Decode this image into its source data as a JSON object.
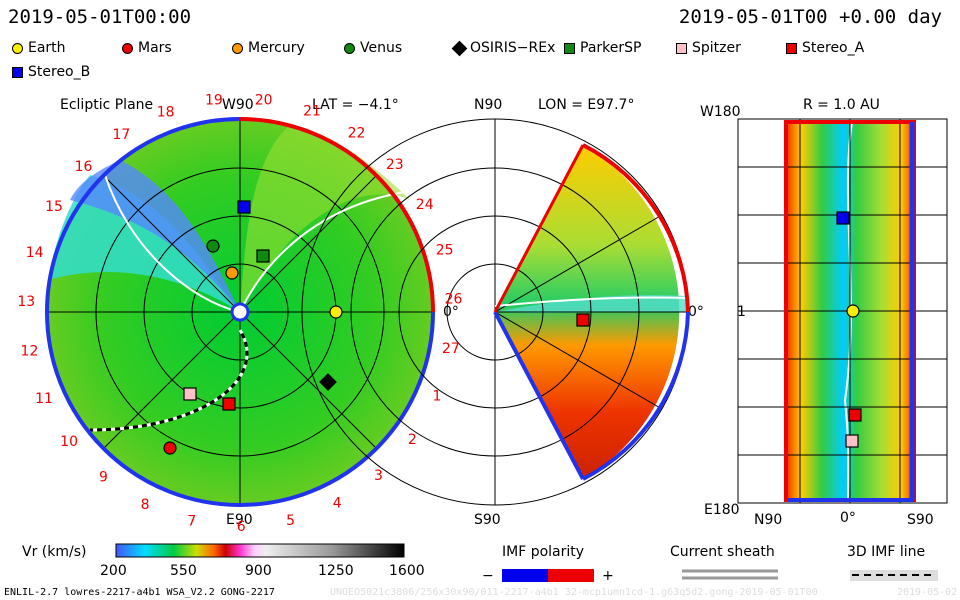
{
  "header": {
    "left_time": "2019-05-01T00:00",
    "right_time": "2019-05-01T00 +0.00 day"
  },
  "legend": [
    {
      "label": "Earth",
      "shape": "circle",
      "color": "#ffee00"
    },
    {
      "label": "Mars",
      "shape": "circle",
      "color": "#ee0000"
    },
    {
      "label": "Mercury",
      "shape": "circle",
      "color": "#ff9900"
    },
    {
      "label": "Venus",
      "shape": "circle",
      "color": "#118811"
    },
    {
      "label": "OSIRIS−REx",
      "shape": "diamond",
      "color": "#000000"
    },
    {
      "label": "ParkerSP",
      "shape": "square",
      "color": "#118811"
    },
    {
      "label": "Spitzer",
      "shape": "square",
      "color": "#ffc0c8"
    },
    {
      "label": "Stereo_A",
      "shape": "square",
      "color": "#ee0000"
    },
    {
      "label": "Stereo_B",
      "shape": "square",
      "color": "#0000ee"
    }
  ],
  "panel1": {
    "title": "Ecliptic Plane",
    "top_label": "W90",
    "lat": "LAT = −4.1°",
    "bottom_label": "E90",
    "right_label": "0°",
    "ticks": [
      "19",
      "20",
      "21",
      "22",
      "23",
      "24",
      "25",
      "26",
      "27",
      "1",
      "2",
      "3",
      "4",
      "5",
      "6",
      "7",
      "8",
      "9",
      "10",
      "11",
      "12",
      "13",
      "14",
      "15",
      "16",
      "17",
      "18"
    ]
  },
  "panel2": {
    "top_left": "N90",
    "lon": "LON = E97.7°",
    "bottom_left": "S90",
    "right_label": "0°"
  },
  "panel3": {
    "top_left": "W180",
    "r": "R = 1.0 AU",
    "left_mid": "1",
    "bottom_left": "E180",
    "x_labels": [
      "N90",
      "0°",
      "S90"
    ]
  },
  "colorbar": {
    "label": "Vr (km/s)",
    "ticks": [
      "200",
      "550",
      "900",
      "1250",
      "1600"
    ]
  },
  "imf": {
    "title": "IMF polarity",
    "minus": "−",
    "plus": "+"
  },
  "sheath": {
    "title": "Current sheath"
  },
  "imf3d": {
    "title": "3D IMF line"
  },
  "footer": {
    "left": "ENLIL-2.7 lowres-2217-a4b1 WSA_V2.2 GONG-2217",
    "middle": "UNOEO5021c3806/256x30x90/011-2217-a4b1 32-mcp1umn1cd-1.g63q5d2.gong-2019-05-01T00",
    "right": "2019-05-02"
  }
}
